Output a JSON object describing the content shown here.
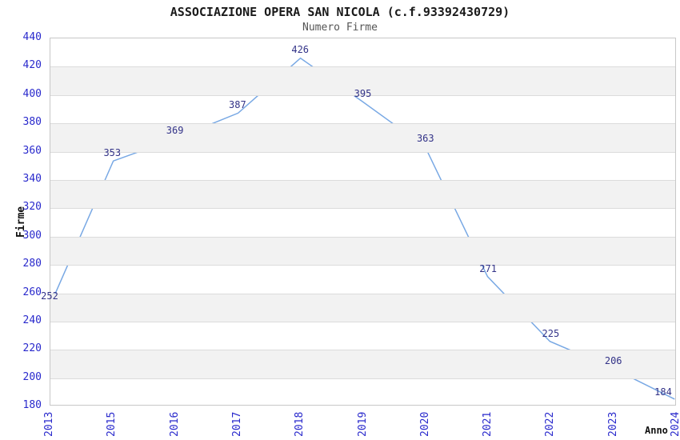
{
  "page": {
    "background": "#ffffff"
  },
  "chart_data": {
    "type": "line",
    "title": "ASSOCIAZIONE OPERA SAN NICOLA (c.f.93392430729)",
    "subtitle": "Numero Firme",
    "xlabel": "Anno",
    "ylabel": "Firme",
    "categories": [
      "2013",
      "2015",
      "2016",
      "2017",
      "2018",
      "2019",
      "2020",
      "2021",
      "2022",
      "2023",
      "2024"
    ],
    "values": [
      252,
      353,
      369,
      387,
      426,
      395,
      363,
      271,
      225,
      206,
      184
    ],
    "ylim": [
      180,
      440
    ],
    "ytick_step": 20,
    "yticks": [
      180,
      200,
      220,
      240,
      260,
      280,
      300,
      320,
      340,
      360,
      380,
      400,
      420,
      440
    ],
    "grid": "horizontal gridlines with alternating gray bands",
    "legend": "none",
    "markers": "none",
    "data_labels": true,
    "colors": {
      "line": "#78a8e4",
      "band": "#f2f2f2",
      "grid_line": "#dcdcdc",
      "border": "#c8c8c8",
      "tick_label": "#2929cc",
      "data_label": "#333388",
      "title": "#1a1a1a",
      "subtitle": "#555555",
      "axis_title": "#111111"
    }
  }
}
